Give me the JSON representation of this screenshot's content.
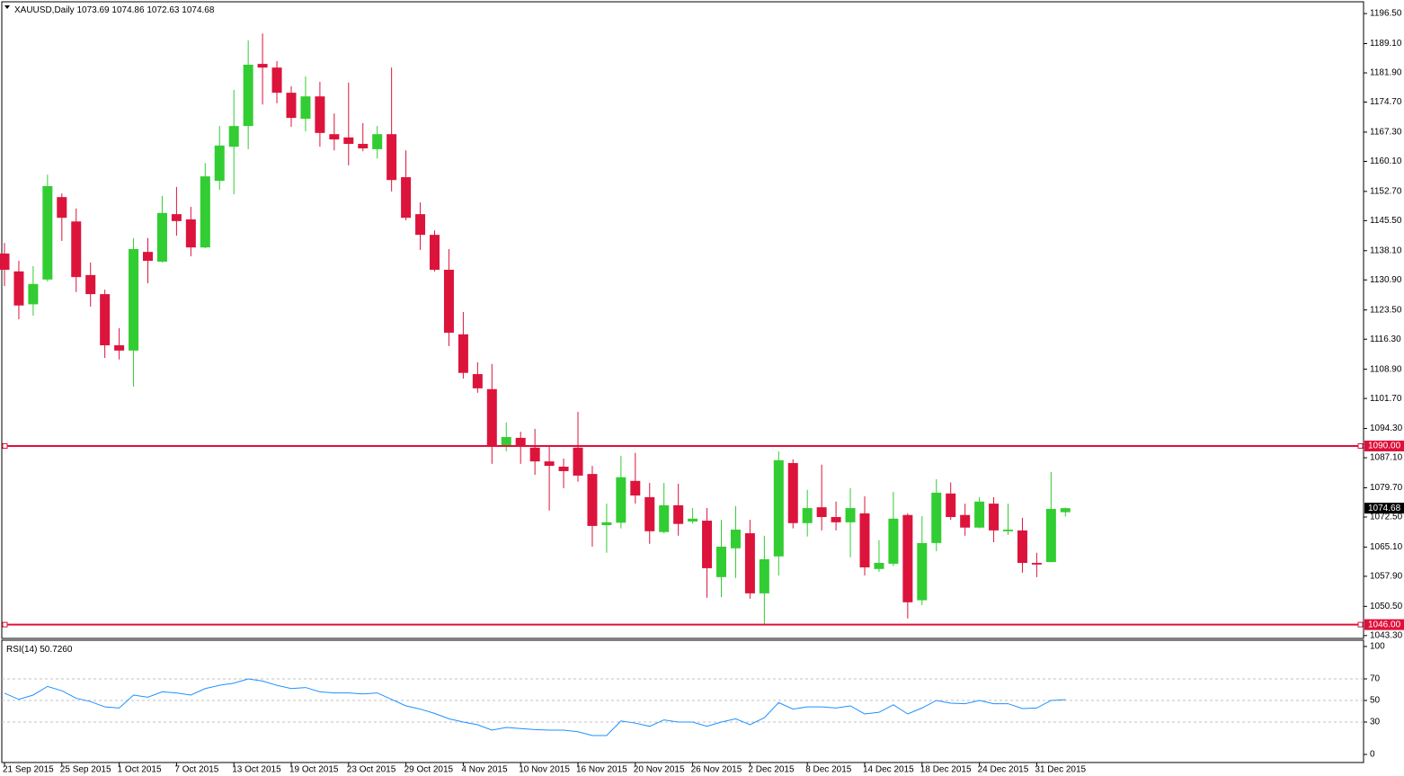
{
  "chart_data": [
    {
      "type": "candlestick",
      "title": "XAUUSD,Daily",
      "categories": [
        "21 Sep 2015",
        null,
        null,
        null,
        "25 Sep 2015",
        null,
        null,
        null,
        "1 Oct 2015",
        null,
        null,
        null,
        "7 Oct 2015",
        null,
        null,
        null,
        "13 Oct 2015",
        null,
        null,
        null,
        "19 Oct 2015",
        null,
        null,
        null,
        "23 Oct 2015",
        null,
        null,
        null,
        "29 Oct 2015",
        null,
        null,
        null,
        "4 Nov 2015",
        null,
        null,
        null,
        "10 Nov 2015",
        null,
        null,
        null,
        "16 Nov 2015",
        null,
        null,
        null,
        "20 Nov 2015",
        null,
        null,
        null,
        "26 Nov 2015",
        null,
        null,
        null,
        "2 Dec 2015",
        null,
        null,
        null,
        "8 Dec 2015",
        null,
        null,
        null,
        "14 Dec 2015",
        null,
        null,
        null,
        "18 Dec 2015",
        null,
        null,
        null,
        "24 Dec 2015",
        null,
        null,
        null,
        "31 Dec 2015",
        null,
        null
      ],
      "open": [
        1137.4,
        1133.0,
        1124.9,
        1131.0,
        1151.3,
        1145.3,
        1132.1,
        1127.4,
        1114.8,
        1113.5,
        1137.8,
        1135.4,
        1147.1,
        1145.8,
        1138.9,
        1155.3,
        1163.7,
        1168.8,
        1184.1,
        1183.2,
        1177.0,
        1170.6,
        1176.1,
        1166.8,
        1166.0,
        1164.4,
        1163.1,
        1166.8,
        1156.2,
        1147.1,
        1142.0,
        1133.4,
        1117.5,
        1107.7,
        1104.0,
        1090.0,
        1092.0,
        1089.6,
        1086.2,
        1084.9,
        1089.6,
        1083.1,
        1070.5,
        1071.1,
        1081.4,
        1077.4,
        1068.8,
        1075.4,
        1071.4,
        1071.6,
        1057.7,
        1064.8,
        1068.5,
        1053.7,
        1062.8,
        1085.8,
        1071.0,
        1074.9,
        1072.5,
        1071.2,
        1073.4,
        1059.7,
        1061.0,
        1073.0,
        1052.0,
        1066.1,
        1078.3,
        1073.0,
        1069.9,
        1075.8,
        1069.0,
        1069.2,
        1061.2,
        1061.4,
        1073.69
      ],
      "high": [
        1140.0,
        1135.6,
        1134.3,
        1156.8,
        1152.2,
        1148.5,
        1135.2,
        1128.5,
        1119.0,
        1141.2,
        1141.2,
        1151.6,
        1153.8,
        1148.9,
        1159.7,
        1168.8,
        1177.7,
        1189.9,
        1191.6,
        1184.8,
        1178.6,
        1181.0,
        1179.7,
        1171.9,
        1179.5,
        1169.5,
        1168.8,
        1183.2,
        1162.8,
        1150.0,
        1143.1,
        1138.5,
        1123.0,
        1110.6,
        1110.2,
        1095.8,
        1093.5,
        1094.2,
        1089.8,
        1086.9,
        1098.4,
        1085.1,
        1075.8,
        1087.6,
        1088.3,
        1080.9,
        1080.9,
        1080.7,
        1074.7,
        1074.7,
        1071.8,
        1075.2,
        1071.8,
        1067.9,
        1088.7,
        1086.7,
        1079.2,
        1085.4,
        1076.3,
        1079.6,
        1077.6,
        1066.8,
        1078.7,
        1073.4,
        1072.7,
        1081.8,
        1081.0,
        1075.8,
        1077.4,
        1077.4,
        1075.8,
        1072.3,
        1063.7,
        1083.6,
        1074.86
      ],
      "low": [
        1129.4,
        1121.2,
        1122.1,
        1130.5,
        1140.5,
        1127.9,
        1124.3,
        1111.7,
        1111.3,
        1104.6,
        1130.1,
        1135.2,
        1141.8,
        1136.7,
        1138.7,
        1153.1,
        1152.0,
        1163.1,
        1174.1,
        1174.4,
        1168.6,
        1167.5,
        1163.7,
        1162.8,
        1159.1,
        1162.6,
        1160.8,
        1152.7,
        1145.6,
        1138.3,
        1133.0,
        1114.6,
        1106.6,
        1103.1,
        1085.6,
        1088.7,
        1085.6,
        1082.9,
        1074.1,
        1079.6,
        1081.2,
        1065.2,
        1063.7,
        1069.7,
        1075.8,
        1065.9,
        1068.5,
        1067.9,
        1070.9,
        1052.6,
        1052.8,
        1057.5,
        1052.4,
        1046.2,
        1058.1,
        1069.7,
        1067.7,
        1069.2,
        1069.2,
        1062.6,
        1058.1,
        1059.0,
        1060.4,
        1047.5,
        1050.8,
        1064.1,
        1071.8,
        1067.9,
        1069.7,
        1066.3,
        1068.1,
        1058.8,
        1057.7,
        1062.1,
        1072.63
      ],
      "close": [
        1133.4,
        1124.6,
        1129.9,
        1154.0,
        1146.2,
        1131.6,
        1127.4,
        1114.8,
        1113.5,
        1138.5,
        1135.6,
        1147.4,
        1145.4,
        1138.9,
        1156.4,
        1164.0,
        1168.8,
        1183.9,
        1183.2,
        1177.0,
        1170.8,
        1176.1,
        1167.1,
        1165.5,
        1164.4,
        1163.3,
        1166.8,
        1155.5,
        1146.2,
        1142.0,
        1133.4,
        1117.9,
        1108.0,
        1104.2,
        1089.8,
        1092.2,
        1089.8,
        1086.2,
        1085.1,
        1083.8,
        1082.7,
        1070.3,
        1071.2,
        1082.3,
        1077.8,
        1069.0,
        1075.4,
        1070.8,
        1072.1,
        1059.9,
        1065.2,
        1069.4,
        1053.7,
        1062.1,
        1086.5,
        1071.0,
        1074.7,
        1072.5,
        1071.2,
        1074.7,
        1060.1,
        1061.2,
        1072.1,
        1051.5,
        1066.1,
        1078.5,
        1072.5,
        1069.9,
        1076.3,
        1069.2,
        1069.4,
        1061.2,
        1060.8,
        1074.5,
        1074.68
      ],
      "up_color": "#32cd32",
      "down_color": "#dc143c",
      "ylim": [
        1042.6,
        1199.4
      ],
      "yticks": [
        {
          "value": 1196.5,
          "label": "1196.50"
        },
        {
          "value": 1189.1,
          "label": "1189.10"
        },
        {
          "value": 1181.9,
          "label": "1181.90"
        },
        {
          "value": 1174.7,
          "label": "1174.70"
        },
        {
          "value": 1167.3,
          "label": "1167.30"
        },
        {
          "value": 1160.1,
          "label": "1160.10"
        },
        {
          "value": 1152.7,
          "label": "1152.70"
        },
        {
          "value": 1145.5,
          "label": "1145.50"
        },
        {
          "value": 1138.1,
          "label": "1138.10"
        },
        {
          "value": 1130.9,
          "label": "1130.90"
        },
        {
          "value": 1123.5,
          "label": "1123.50"
        },
        {
          "value": 1116.3,
          "label": "1116.30"
        },
        {
          "value": 1108.9,
          "label": "1108.90"
        },
        {
          "value": 1101.7,
          "label": "1101.70"
        },
        {
          "value": 1094.3,
          "label": "1094.30"
        },
        {
          "value": 1087.1,
          "label": "1087.10"
        },
        {
          "value": 1079.7,
          "label": "1079.70"
        },
        {
          "value": 1072.5,
          "label": "1072.50"
        },
        {
          "value": 1065.1,
          "label": "1065.10"
        },
        {
          "value": 1057.9,
          "label": "1057.90"
        },
        {
          "value": 1050.5,
          "label": "1050.50"
        },
        {
          "value": 1043.3,
          "label": "1043.30"
        }
      ],
      "levels": [
        {
          "value": 1090,
          "label": "1090.00"
        },
        {
          "value": 1046,
          "label": "1046.00"
        }
      ],
      "level_color": "#e0103a"
    },
    {
      "type": "line",
      "title": "RSI(14)",
      "last_value_label": "50.7260",
      "color": "#1e90ff",
      "values": [
        56.7,
        51,
        55,
        63,
        59,
        52,
        49,
        44,
        43,
        55,
        53,
        58,
        57,
        55,
        61,
        64,
        66,
        70,
        68,
        64,
        61,
        62,
        58,
        57,
        57,
        56,
        57,
        51,
        45,
        42,
        38,
        33,
        30,
        27.5,
        22.5,
        25,
        24,
        23,
        22.5,
        22.5,
        21,
        17.5,
        17.5,
        31,
        29,
        26,
        32,
        30,
        30,
        26,
        30,
        33,
        27.5,
        34,
        48,
        42,
        44,
        44,
        43,
        45,
        37.5,
        39,
        46,
        37.5,
        43,
        50,
        47.5,
        47,
        50,
        47,
        47,
        42.5,
        43,
        50,
        50.726
      ],
      "ylim": [
        -7.5,
        105.8
      ],
      "yticks": [
        0,
        30,
        50,
        70,
        100
      ],
      "levels": [
        30,
        50,
        70
      ]
    }
  ]
}
